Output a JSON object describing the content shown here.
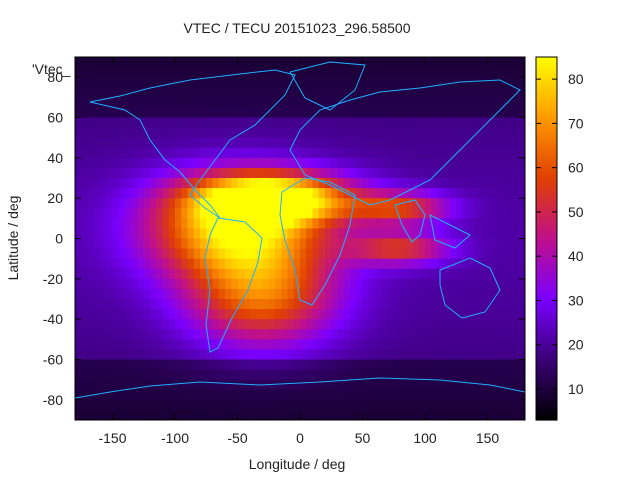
{
  "chart_data": {
    "type": "heatmap",
    "title": "VTEC / TECU 20151023_296.58500",
    "xlabel": "Longitude / deg",
    "ylabel": "Latitude / deg",
    "legend_key": "'Vtec_",
    "xlim": [
      -180,
      180
    ],
    "ylim": [
      -90,
      90
    ],
    "xticks": [
      -150,
      -100,
      -50,
      0,
      50,
      100,
      150
    ],
    "yticks": [
      80,
      60,
      40,
      20,
      0,
      -20,
      -40,
      -60,
      -80
    ],
    "colorbar": {
      "min": 3,
      "max": 85,
      "ticks": [
        80,
        70,
        60,
        50,
        40,
        30,
        20,
        10
      ],
      "palette": [
        "#000000",
        "#3a0078",
        "#7a00ff",
        "#c0108a",
        "#e04000",
        "#ff9a00",
        "#ffff00"
      ]
    },
    "background_level": 15,
    "features": [
      {
        "name": "equatorial-anomaly-americas",
        "lon": -50,
        "lat": 5,
        "lon_width": 70,
        "lat_width": 25,
        "value": 75
      },
      {
        "name": "anomaly-crest-north",
        "lon": -20,
        "lat": 20,
        "lon_width": 60,
        "lat_width": 12,
        "value": 75
      },
      {
        "name": "southern-atlantic-peak",
        "lon": -30,
        "lat": -30,
        "lon_width": 60,
        "lat_width": 25,
        "value": 55
      },
      {
        "name": "india-tail-north",
        "lon": 80,
        "lat": 15,
        "lon_width": 40,
        "lat_width": 8,
        "value": 50
      },
      {
        "name": "india-tail-south",
        "lon": 80,
        "lat": -5,
        "lon_width": 40,
        "lat_width": 8,
        "value": 48
      }
    ]
  }
}
